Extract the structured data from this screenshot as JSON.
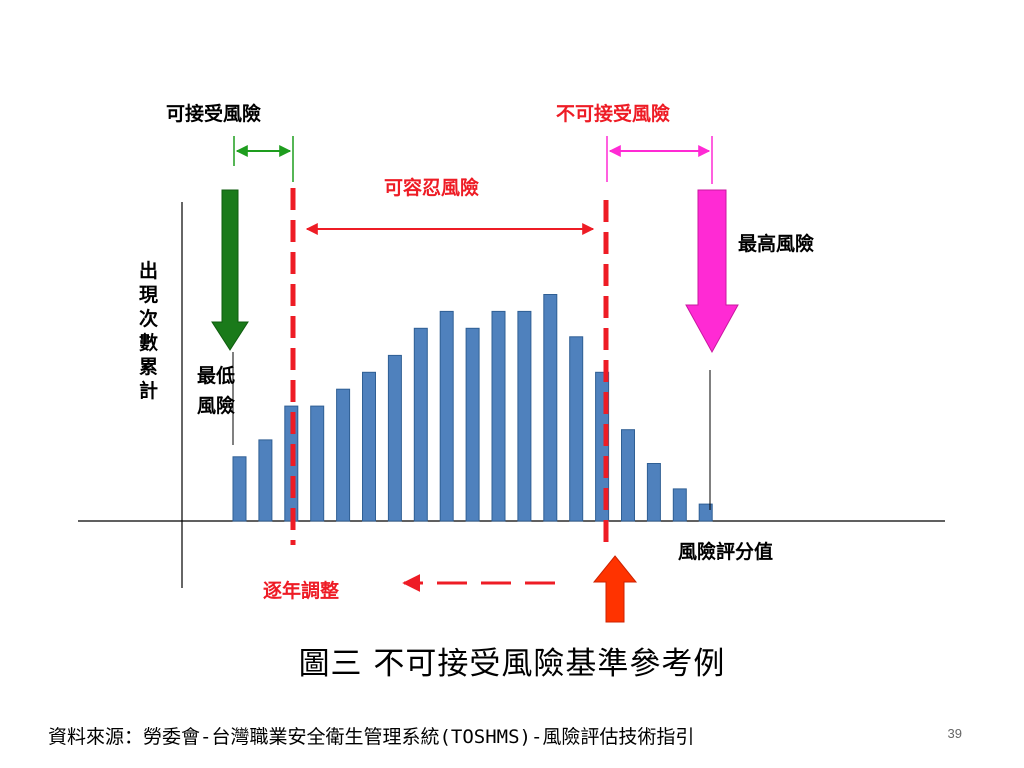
{
  "chart_data": {
    "type": "bar",
    "values": [
      3.8,
      4.8,
      6.8,
      6.8,
      7.8,
      8.8,
      9.8,
      11.4,
      12.4,
      11.4,
      12.4,
      12.4,
      13.4,
      10.9,
      8.8,
      5.4,
      3.4,
      1.9,
      1.0
    ],
    "ylabel": "出現次數累計",
    "xlabel": "風險評分值",
    "bar_color": "#4f81bd",
    "annotations": {
      "acceptable": "可接受風險",
      "unacceptable": "不可接受風險",
      "tolerable": "可容忍風險",
      "highest": "最高風險",
      "lowest_line1": "最低",
      "lowest_line2": "風險",
      "adjust": "逐年調整"
    },
    "colors": {
      "green": "#1e7d1e",
      "red": "#ee1c25",
      "magenta": "#ff2ad4",
      "orange_red": "#ff3300"
    }
  },
  "caption": "圖三 不可接受風險基準參考例",
  "source": "資料來源：勞委會-台灣職業安全衛生管理系統(TOSHMS)-風險評估技術指引",
  "page_number": "39"
}
